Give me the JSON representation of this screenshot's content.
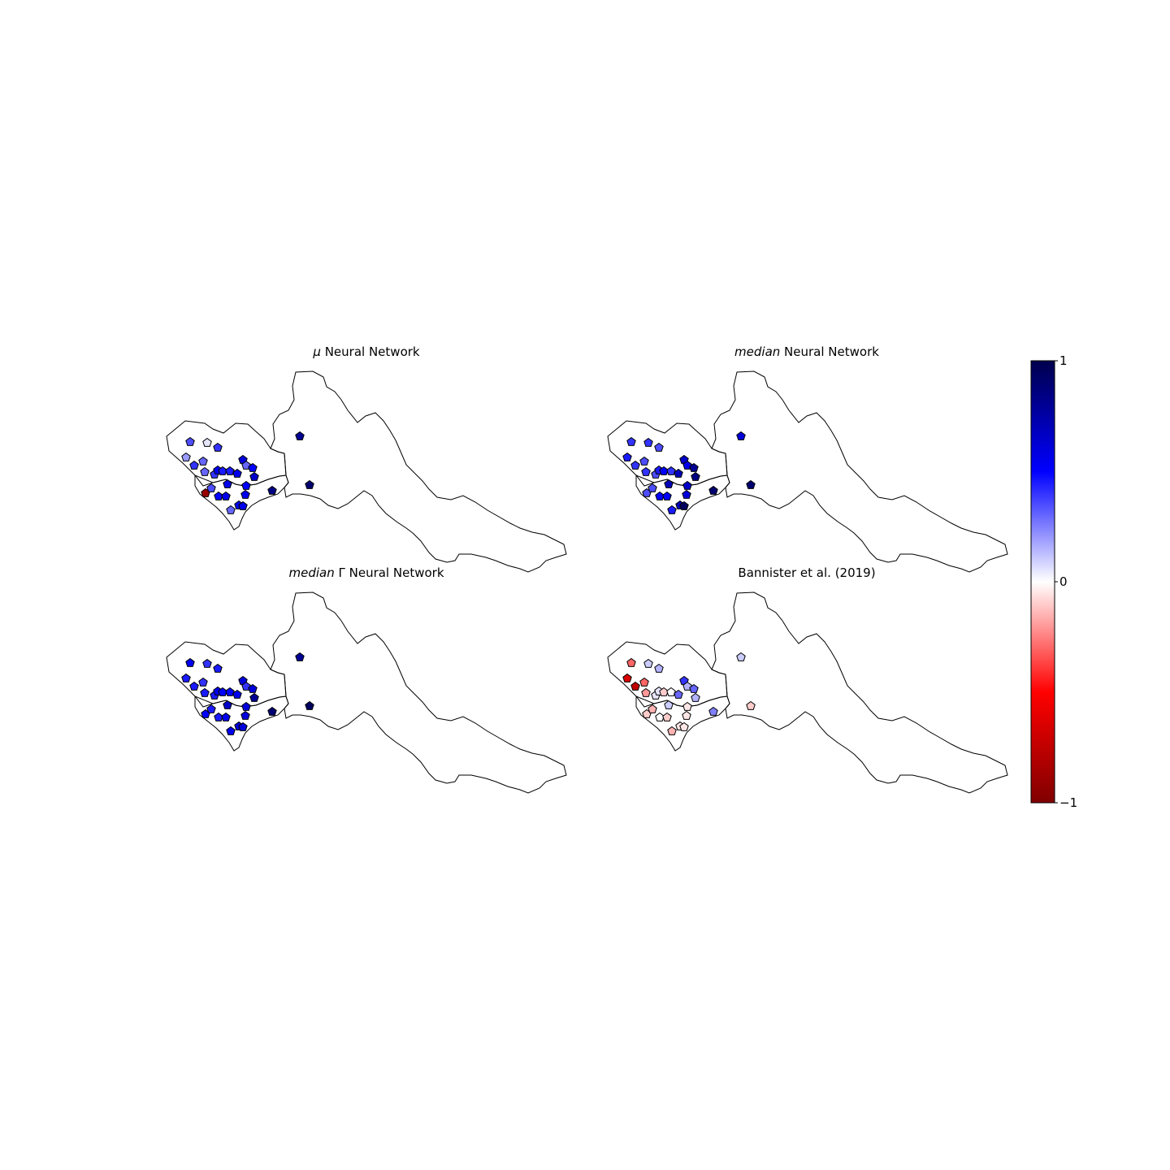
{
  "panels": [
    {
      "title_prefix": "μ",
      "title_suffix": " Neural Network"
    },
    {
      "title_prefix": "median",
      "title_suffix": " Neural Network"
    },
    {
      "title_prefix": "median",
      "title_suffix": " Γ Neural Network"
    },
    {
      "title_prefix": "",
      "title_suffix": "Bannister et al. (2019)"
    }
  ],
  "colorbar": {
    "max_label": "1",
    "mid_label": "0",
    "min_label": "−1",
    "colors": [
      "#00004c",
      "#0000ff",
      "#ffffff",
      "#ff0000",
      "#800000"
    ]
  },
  "chart_data": {
    "type": "map-scatter",
    "value_range": [
      -1,
      1
    ],
    "colormap": "seismic_r",
    "stations": {
      "mu": [
        0.35,
        0.05,
        0.4,
        0.2,
        0.4,
        0.3,
        0.3,
        0.4,
        0.5,
        0.45,
        0.45,
        0.55,
        0.6,
        0.3,
        0.5,
        0.65,
        0.8,
        -0.9,
        0.35,
        0.5,
        0.55,
        0.55,
        0.5,
        0.55,
        0.3,
        0.55,
        0.55,
        0.9,
        0.85
      ],
      "median": [
        0.4,
        0.4,
        0.35,
        0.45,
        0.4,
        0.35,
        0.4,
        0.35,
        0.45,
        0.5,
        0.4,
        0.7,
        0.65,
        0.55,
        0.8,
        0.85,
        0.6,
        0.35,
        0.35,
        0.5,
        0.5,
        0.7,
        0.65,
        0.6,
        0.45,
        0.7,
        0.95,
        0.9,
        0.9
      ],
      "gamma": [
        0.55,
        0.4,
        0.45,
        0.45,
        0.45,
        0.4,
        0.45,
        0.45,
        0.55,
        0.5,
        0.5,
        0.55,
        0.6,
        0.4,
        0.6,
        0.8,
        0.8,
        0.5,
        0.45,
        0.45,
        0.55,
        0.65,
        0.6,
        0.6,
        0.55,
        0.6,
        0.6,
        0.95,
        0.9
      ],
      "bannister": [
        -0.3,
        0.1,
        0.15,
        -0.65,
        -0.75,
        -0.3,
        -0.2,
        0.05,
        0.05,
        -0.1,
        0.0,
        0.3,
        0.4,
        0.15,
        0.3,
        0.15,
        0.1,
        -0.1,
        -0.15,
        0.0,
        -0.1,
        0.1,
        -0.05,
        -0.05,
        -0.15,
        -0.05,
        -0.05,
        -0.1,
        0.25
      ]
    }
  }
}
